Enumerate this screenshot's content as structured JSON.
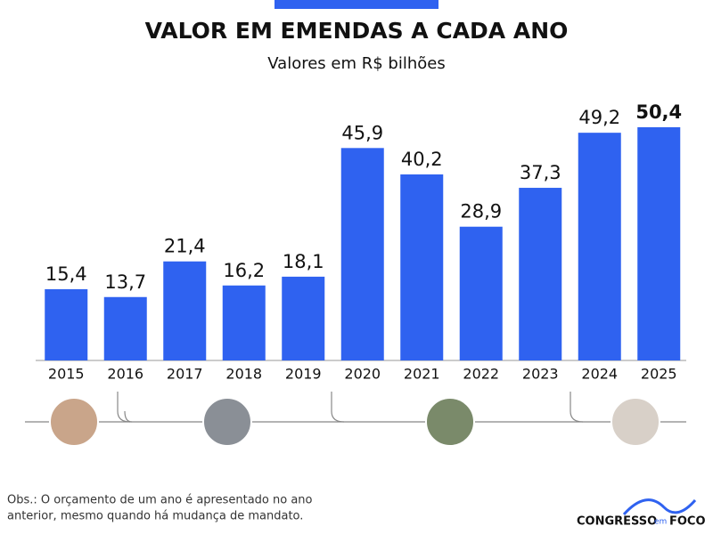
{
  "chart_data": {
    "type": "bar",
    "title": "VALOR EM EMENDAS A CADA ANO",
    "subtitle": "Valores em R$ bilhões",
    "categories": [
      "2015",
      "2016",
      "2017",
      "2018",
      "2019",
      "2020",
      "2021",
      "2022",
      "2023",
      "2024",
      "2025"
    ],
    "values": [
      15.4,
      13.7,
      21.4,
      16.2,
      18.1,
      45.9,
      40.2,
      28.9,
      37.3,
      49.2,
      50.4
    ],
    "value_labels": [
      "15,4",
      "13,7",
      "21,4",
      "16,2",
      "18,1",
      "45,9",
      "40,2",
      "28,9",
      "37,3",
      "49,2",
      "50,4"
    ],
    "color": "#2f62f0",
    "ylim": [
      0,
      55
    ],
    "note": [
      "Obs.: O orçamento de um ano é apresentado no ano",
      "anterior, mesmo quando há mudança de mandato."
    ],
    "logo": [
      "CONGRESSO",
      "em",
      "FOCO"
    ]
  }
}
